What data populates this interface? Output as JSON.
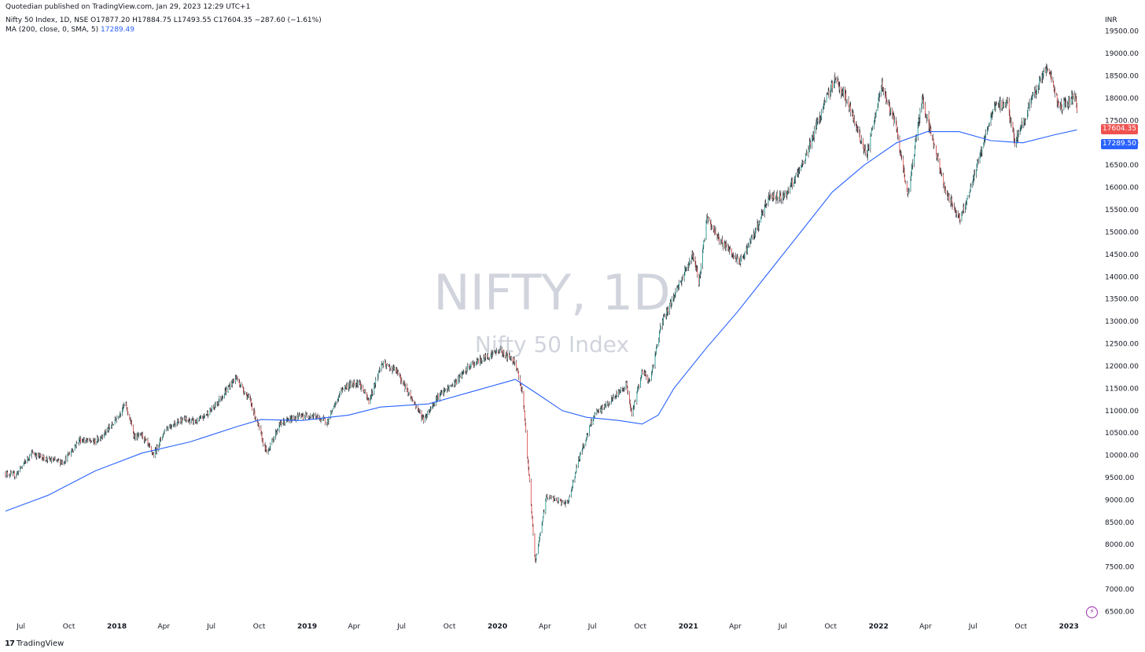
{
  "header": {
    "publish_line": "Quotedian published on TradingView.com, Jan 29, 2023 12:29 UTC+1",
    "symbol_line": "Nifty 50 Index, 1D, NSE",
    "open_label": "O",
    "open": "17877.20",
    "high_label": "H",
    "high": "17884.75",
    "low_label": "L",
    "low": "17493.55",
    "close_label": "C",
    "close": "17604.35",
    "change": "−287.60 (−1.61%)",
    "ma_line": "MA (200, close, 0, SMA, 5)",
    "ma_value": "17289.49"
  },
  "watermark": {
    "symbol": "NIFTY, 1D",
    "name": "Nifty 50 Index"
  },
  "currency": "INR",
  "price_tags": {
    "last": "17604.35",
    "ma": "17289.50"
  },
  "footer": {
    "logo_mark": "17",
    "logo_text": "TradingView"
  },
  "colors": {
    "up": "#26a69a",
    "down": "#ef5350",
    "wick": "#131722",
    "ma": "#2962ff",
    "last_tag": "#ef5350",
    "ma_tag": "#2962ff",
    "watermark": "#d1d4dc"
  },
  "icons": {
    "flash": "lightning-icon"
  },
  "chart_data": {
    "type": "candlestick",
    "x_ticks": [
      "Jul",
      "Oct",
      "2018",
      "Apr",
      "Jul",
      "Oct",
      "2019",
      "Apr",
      "Jul",
      "Oct",
      "2020",
      "Apr",
      "Jul",
      "Oct",
      "2021",
      "Apr",
      "Jul",
      "Oct",
      "2022",
      "Apr",
      "Jul",
      "Oct",
      "2023"
    ],
    "y_ticks": [
      "6500.00",
      "7000.00",
      "7500.00",
      "8000.00",
      "8500.00",
      "9000.00",
      "9500.00",
      "10000.00",
      "10500.00",
      "11000.00",
      "11500.00",
      "12000.00",
      "12500.00",
      "13000.00",
      "13500.00",
      "14000.00",
      "14500.00",
      "15000.00",
      "15500.00",
      "16000.00",
      "16500.00",
      "17000.00",
      "17500.00",
      "18000.00",
      "18500.00",
      "19000.00",
      "19500.00"
    ],
    "ylim": [
      6350,
      19900
    ],
    "x_range": [
      "2017-06-12",
      "2023-02-27"
    ],
    "close_series": [
      [
        "2017-06-12",
        9600
      ],
      [
        "2017-07-01",
        9550
      ],
      [
        "2017-08-01",
        10050
      ],
      [
        "2017-09-01",
        9900
      ],
      [
        "2017-10-01",
        9850
      ],
      [
        "2017-11-01",
        10350
      ],
      [
        "2017-12-01",
        10300
      ],
      [
        "2018-01-01",
        10650
      ],
      [
        "2018-01-28",
        11150
      ],
      [
        "2018-02-15",
        10400
      ],
      [
        "2018-03-01",
        10450
      ],
      [
        "2018-03-23",
        10000
      ],
      [
        "2018-04-15",
        10600
      ],
      [
        "2018-05-15",
        10800
      ],
      [
        "2018-06-15",
        10750
      ],
      [
        "2018-07-15",
        11050
      ],
      [
        "2018-08-28",
        11750
      ],
      [
        "2018-09-25",
        11200
      ],
      [
        "2018-10-26",
        10050
      ],
      [
        "2018-11-20",
        10700
      ],
      [
        "2018-12-20",
        10850
      ],
      [
        "2019-01-20",
        10900
      ],
      [
        "2019-02-20",
        10750
      ],
      [
        "2019-03-20",
        11500
      ],
      [
        "2019-04-20",
        11650
      ],
      [
        "2019-05-10",
        11200
      ],
      [
        "2019-06-03",
        12050
      ],
      [
        "2019-07-01",
        11900
      ],
      [
        "2019-08-23",
        10800
      ],
      [
        "2019-09-18",
        11300
      ],
      [
        "2019-10-20",
        11600
      ],
      [
        "2019-11-20",
        12000
      ],
      [
        "2019-12-20",
        12200
      ],
      [
        "2020-01-15",
        12350
      ],
      [
        "2020-02-15",
        12100
      ],
      [
        "2020-03-01",
        11300
      ],
      [
        "2020-03-24",
        7600
      ],
      [
        "2020-04-15",
        9100
      ],
      [
        "2020-05-01",
        9000
      ],
      [
        "2020-05-25",
        8900
      ],
      [
        "2020-06-15",
        9900
      ],
      [
        "2020-07-15",
        10900
      ],
      [
        "2020-08-15",
        11200
      ],
      [
        "2020-09-15",
        11600
      ],
      [
        "2020-09-25",
        10900
      ],
      [
        "2020-10-15",
        11900
      ],
      [
        "2020-10-30",
        11650
      ],
      [
        "2020-11-20",
        12900
      ],
      [
        "2020-12-20",
        13700
      ],
      [
        "2021-01-20",
        14500
      ],
      [
        "2021-02-01",
        13900
      ],
      [
        "2021-02-16",
        15300
      ],
      [
        "2021-03-15",
        14800
      ],
      [
        "2021-04-20",
        14300
      ],
      [
        "2021-05-20",
        15000
      ],
      [
        "2021-06-15",
        15800
      ],
      [
        "2021-07-15",
        15800
      ],
      [
        "2021-08-15",
        16400
      ],
      [
        "2021-09-15",
        17400
      ],
      [
        "2021-10-19",
        18450
      ],
      [
        "2021-11-10",
        18000
      ],
      [
        "2021-12-20",
        16700
      ],
      [
        "2022-01-18",
        18300
      ],
      [
        "2022-02-15",
        17300
      ],
      [
        "2022-03-08",
        15800
      ],
      [
        "2022-04-05",
        18000
      ],
      [
        "2022-04-25",
        17100
      ],
      [
        "2022-05-20",
        15900
      ],
      [
        "2022-06-17",
        15300
      ],
      [
        "2022-07-10",
        16100
      ],
      [
        "2022-08-20",
        17800
      ],
      [
        "2022-09-15",
        17900
      ],
      [
        "2022-09-30",
        17000
      ],
      [
        "2022-10-20",
        17600
      ],
      [
        "2022-11-15",
        18300
      ],
      [
        "2022-12-01",
        18750
      ],
      [
        "2022-12-23",
        17800
      ],
      [
        "2023-01-10",
        17900
      ],
      [
        "2023-01-24",
        18100
      ],
      [
        "2023-01-27",
        17604.35
      ]
    ],
    "ma_series": [
      [
        "2017-06-12",
        8750
      ],
      [
        "2017-09-01",
        9100
      ],
      [
        "2017-12-01",
        9650
      ],
      [
        "2018-03-01",
        10050
      ],
      [
        "2018-06-01",
        10300
      ],
      [
        "2018-09-01",
        10650
      ],
      [
        "2018-10-15",
        10800
      ],
      [
        "2019-01-01",
        10780
      ],
      [
        "2019-04-01",
        10900
      ],
      [
        "2019-06-01",
        11080
      ],
      [
        "2019-09-01",
        11150
      ],
      [
        "2019-12-01",
        11450
      ],
      [
        "2020-02-15",
        11700
      ],
      [
        "2020-03-25",
        11400
      ],
      [
        "2020-05-15",
        11000
      ],
      [
        "2020-07-01",
        10850
      ],
      [
        "2020-09-01",
        10780
      ],
      [
        "2020-10-15",
        10700
      ],
      [
        "2020-11-15",
        10900
      ],
      [
        "2020-12-15",
        11500
      ],
      [
        "2021-02-15",
        12400
      ],
      [
        "2021-04-15",
        13200
      ],
      [
        "2021-06-15",
        14100
      ],
      [
        "2021-08-15",
        15000
      ],
      [
        "2021-10-15",
        15900
      ],
      [
        "2021-12-15",
        16500
      ],
      [
        "2022-02-15",
        17000
      ],
      [
        "2022-04-15",
        17250
      ],
      [
        "2022-06-15",
        17250
      ],
      [
        "2022-08-15",
        17050
      ],
      [
        "2022-10-15",
        17000
      ],
      [
        "2022-12-15",
        17180
      ],
      [
        "2023-01-27",
        17289.49
      ]
    ],
    "title": "Nifty 50 Index, 1D, NSE",
    "series": [
      {
        "name": "MA (200, close, 0, SMA, 5)"
      }
    ],
    "grid": false
  }
}
